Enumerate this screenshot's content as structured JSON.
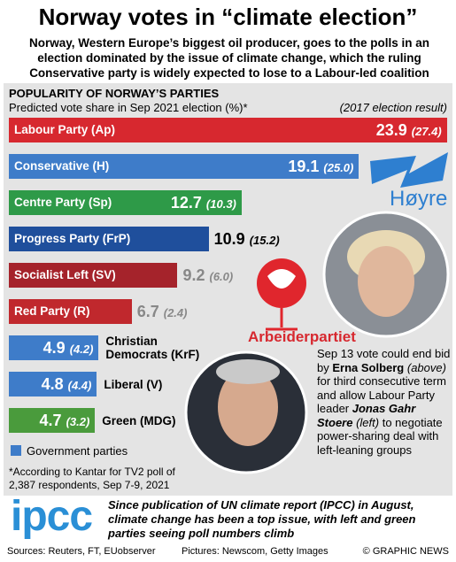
{
  "title": "Norway votes in “climate election”",
  "subtitle": "Norway, Western Europe’s biggest oil producer, goes to the polls in an election dominated by the issue of climate change, which the ruling Conservative party is widely expected to lose to a Labour-led coalition",
  "chart_data": {
    "type": "bar",
    "orientation": "horizontal",
    "title": "POPULARITY OF NORWAY’S PARTIES",
    "subtitle": "Predicted vote share in Sep 2021 election (%)*",
    "previous_label": "(2017 election result)",
    "categories": [
      "Labour Party (Ap)",
      "Conservative (H)",
      "Centre Party (Sp)",
      "Progress Party (FrP)",
      "Socialist Left (SV)",
      "Red Party (R)",
      "Christian Democrats (KrF)",
      "Liberal (V)",
      "Green (MDG)"
    ],
    "values": [
      23.9,
      19.1,
      12.7,
      10.9,
      9.2,
      6.7,
      4.9,
      4.8,
      4.7
    ],
    "previous_values": [
      27.4,
      25.0,
      10.3,
      15.2,
      6.0,
      2.4,
      4.2,
      4.4,
      3.2
    ],
    "previous_value_labels": [
      "(27.4)",
      "(25.0)",
      "(10.3)",
      "(15.2)",
      "(6.0)",
      "(2.4)",
      "(4.2)",
      "(4.4)",
      "(3.2)"
    ],
    "colors": [
      "#d7282f",
      "#3e7cc9",
      "#2e9a48",
      "#1f4f9c",
      "#a5232b",
      "#c0282d",
      "#3e7cc9",
      "#3e7cc9",
      "#4a9b3c"
    ],
    "legend": {
      "label": "Government parties",
      "color": "#3e7cc9"
    },
    "footnote": "*According to Kantar for TV2 poll of 2,387 respondents, Sep 7-9, 2021"
  },
  "logos": {
    "conservative": "Høyre",
    "labour": "Arbeiderpartiet",
    "ipcc": "ipcc"
  },
  "caption": [
    "Sep 13 vote could end bid by ",
    "Erna Solberg",
    " (above)",
    " for third consecutive term and allow Labour Party leader ",
    "Jonas Gahr Stoere",
    " (left)",
    " to negotiate power-sharing deal with left-leaning groups"
  ],
  "ipcc_text": "Since publication of UN climate report (IPCC) in August, climate change has been a top issue, with left and green parties seeing poll numbers climb",
  "footer": {
    "sources": "Sources: Reuters, FT, EUobserver",
    "pictures": "Pictures: Newscom, Getty Images",
    "credit": "© GRAPHIC NEWS"
  }
}
